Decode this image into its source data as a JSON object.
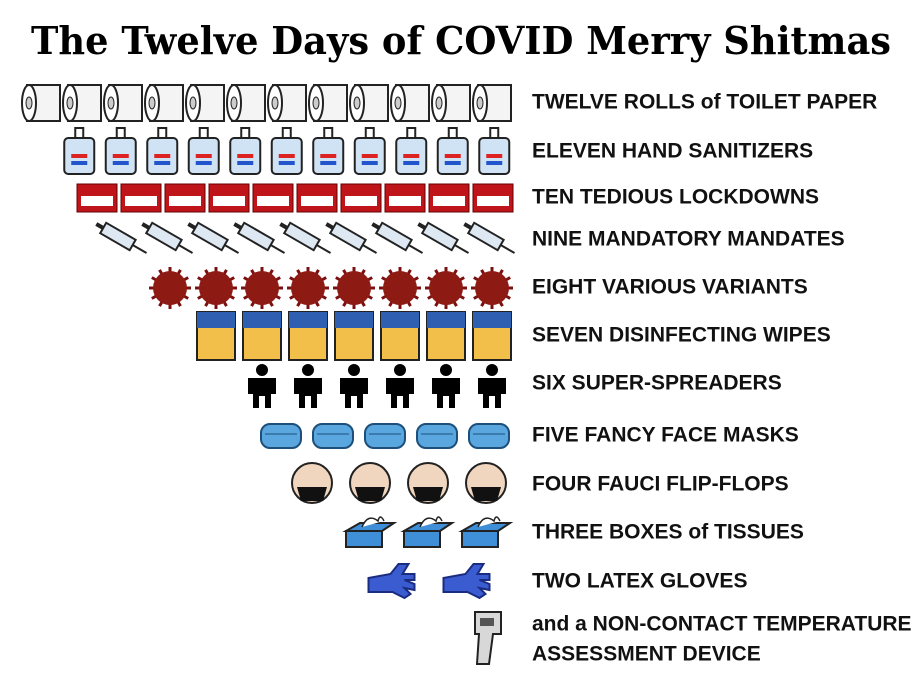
{
  "title": "The Twelve Days of COVID Merry Shitmas",
  "rows": [
    {
      "count": 12,
      "lines": [
        "TWELVE ROLLS of TOILET PAPER"
      ]
    },
    {
      "count": 11,
      "lines": [
        "ELEVEN HAND SANITIZERS"
      ]
    },
    {
      "count": 10,
      "lines": [
        "TEN TEDIOUS LOCKDOWNS"
      ]
    },
    {
      "count": 9,
      "lines": [
        "NINE MANDATORY MANDATES"
      ]
    },
    {
      "count": 8,
      "lines": [
        "EIGHT VARIOUS VARIANTS"
      ]
    },
    {
      "count": 7,
      "lines": [
        "SEVEN DISINFECTING WIPES"
      ]
    },
    {
      "count": 6,
      "lines": [
        "SIX SUPER-SPREADERS"
      ]
    },
    {
      "count": 5,
      "lines": [
        "FIVE FANCY FACE MASKS"
      ]
    },
    {
      "count": 4,
      "lines": [
        "FOUR FAUCI FLIP-FLOPS"
      ]
    },
    {
      "count": 3,
      "lines": [
        "THREE BOXES of TISSUES"
      ]
    },
    {
      "count": 2,
      "lines": [
        "TWO LATEX GLOVES"
      ]
    },
    {
      "count": 1,
      "lines": [
        "and a NON-CONTACT TEMPERATURE",
        "ASSESSMENT DEVICE"
      ]
    }
  ]
}
